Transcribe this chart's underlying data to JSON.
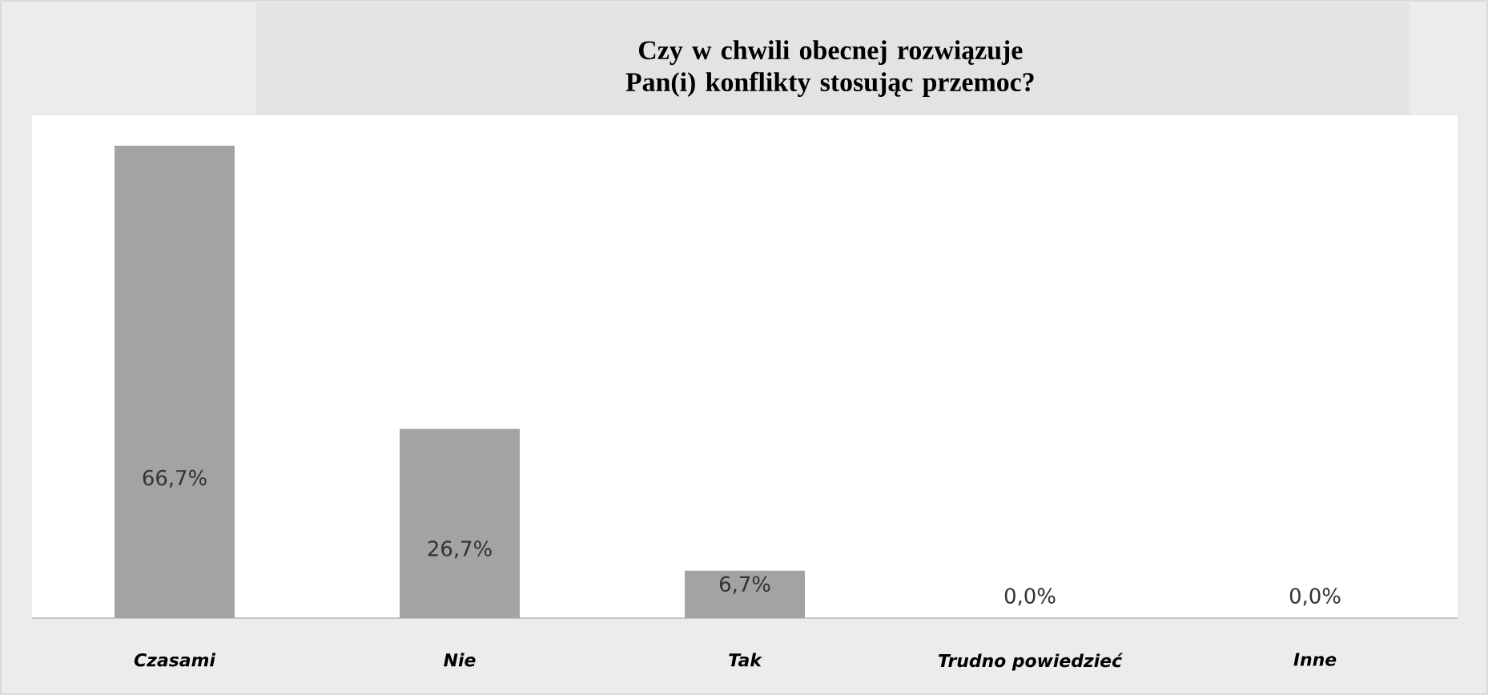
{
  "chart_data": {
    "type": "bar",
    "title": "Czy w chwili obecnej rozwiązuje Pan(i) konflikty stosując przemoc?",
    "categories": [
      "Czasami",
      "Nie",
      "Tak",
      "Trudno powiedzieć",
      "Inne"
    ],
    "values": [
      66.7,
      26.7,
      6.7,
      0.0,
      0.0
    ],
    "value_labels": [
      "66,7%",
      "26,7%",
      "6,7%",
      "0,0%",
      "0,0%"
    ],
    "color": "#a3a3a3",
    "ylim": [
      0,
      71
    ]
  }
}
